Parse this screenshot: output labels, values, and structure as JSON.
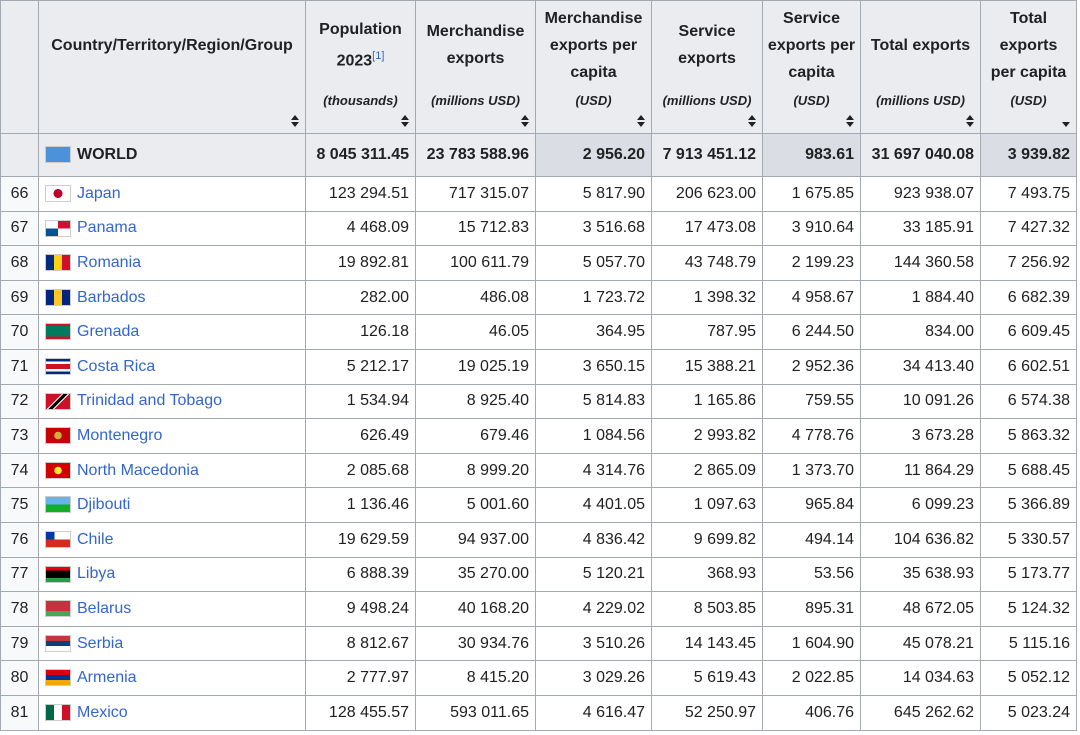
{
  "header": {
    "columns": [
      {
        "title": "Country/Territory/Region/Group"
      },
      {
        "title": "Population 2023",
        "note": "[1]",
        "unit": "(thousands)"
      },
      {
        "title": "Merchandise exports",
        "unit": "(millions USD)"
      },
      {
        "title": "Merchandise exports per capita",
        "unit": "(USD)"
      },
      {
        "title": "Service exports",
        "unit": "(millions USD)"
      },
      {
        "title": "Service exports per capita",
        "unit": "(USD)"
      },
      {
        "title": "Total exports",
        "unit": "(millions USD)"
      },
      {
        "title": "Total exports per capita",
        "unit": "(USD)"
      }
    ]
  },
  "world": {
    "name": "WORLD",
    "cells": [
      "8 045 311.45",
      "23 783 588.96",
      "2 956.20",
      "7 913 451.12",
      "983.61",
      "31 697 040.08",
      "3 939.82"
    ]
  },
  "rows": [
    {
      "rank": "66",
      "name": "Japan",
      "cells": [
        "123 294.51",
        "717 315.07",
        "5 817.90",
        "206 623.00",
        "1 675.85",
        "923 938.07",
        "7 493.75"
      ]
    },
    {
      "rank": "67",
      "name": "Panama",
      "cells": [
        "4 468.09",
        "15 712.83",
        "3 516.68",
        "17 473.08",
        "3 910.64",
        "33 185.91",
        "7 427.32"
      ]
    },
    {
      "rank": "68",
      "name": "Romania",
      "cells": [
        "19 892.81",
        "100 611.79",
        "5 057.70",
        "43 748.79",
        "2 199.23",
        "144 360.58",
        "7 256.92"
      ]
    },
    {
      "rank": "69",
      "name": "Barbados",
      "cells": [
        "282.00",
        "486.08",
        "1 723.72",
        "1 398.32",
        "4 958.67",
        "1 884.40",
        "6 682.39"
      ]
    },
    {
      "rank": "70",
      "name": "Grenada",
      "cells": [
        "126.18",
        "46.05",
        "364.95",
        "787.95",
        "6 244.50",
        "834.00",
        "6 609.45"
      ]
    },
    {
      "rank": "71",
      "name": "Costa Rica",
      "cells": [
        "5 212.17",
        "19 025.19",
        "3 650.15",
        "15 388.21",
        "2 952.36",
        "34 413.40",
        "6 602.51"
      ]
    },
    {
      "rank": "72",
      "name": "Trinidad and Tobago",
      "cells": [
        "1 534.94",
        "8 925.40",
        "5 814.83",
        "1 165.86",
        "759.55",
        "10 091.26",
        "6 574.38"
      ]
    },
    {
      "rank": "73",
      "name": "Montenegro",
      "cells": [
        "626.49",
        "679.46",
        "1 084.56",
        "2 993.82",
        "4 778.76",
        "3 673.28",
        "5 863.32"
      ]
    },
    {
      "rank": "74",
      "name": "North Macedonia",
      "cells": [
        "2 085.68",
        "8 999.20",
        "4 314.76",
        "2 865.09",
        "1 373.70",
        "11 864.29",
        "5 688.45"
      ]
    },
    {
      "rank": "75",
      "name": "Djibouti",
      "cells": [
        "1 136.46",
        "5 001.60",
        "4 401.05",
        "1 097.63",
        "965.84",
        "6 099.23",
        "5 366.89"
      ]
    },
    {
      "rank": "76",
      "name": "Chile",
      "cells": [
        "19 629.59",
        "94 937.00",
        "4 836.42",
        "9 699.82",
        "494.14",
        "104 636.82",
        "5 330.57"
      ]
    },
    {
      "rank": "77",
      "name": "Libya",
      "cells": [
        "6 888.39",
        "35 270.00",
        "5 120.21",
        "368.93",
        "53.56",
        "35 638.93",
        "5 173.77"
      ]
    },
    {
      "rank": "78",
      "name": "Belarus",
      "cells": [
        "9 498.24",
        "40 168.20",
        "4 229.02",
        "8 503.85",
        "895.31",
        "48 672.05",
        "5 124.32"
      ]
    },
    {
      "rank": "79",
      "name": "Serbia",
      "cells": [
        "8 812.67",
        "30 934.76",
        "3 510.26",
        "14 143.45",
        "1 604.90",
        "45 078.21",
        "5 115.16"
      ]
    },
    {
      "rank": "80",
      "name": "Armenia",
      "cells": [
        "2 777.97",
        "8 415.20",
        "3 029.26",
        "5 619.43",
        "2 022.85",
        "14 034.63",
        "5 052.12"
      ]
    },
    {
      "rank": "81",
      "name": "Mexico",
      "cells": [
        "128 455.57",
        "593 011.65",
        "4 616.47",
        "52 250.97",
        "406.76",
        "645 262.62",
        "5 023.24"
      ]
    }
  ]
}
